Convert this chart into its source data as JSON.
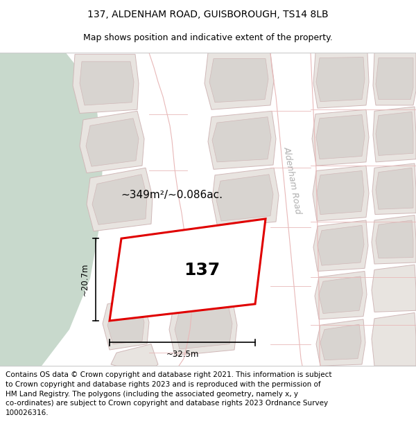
{
  "title": "137, ALDENHAM ROAD, GUISBOROUGH, TS14 8LB",
  "subtitle": "Map shows position and indicative extent of the property.",
  "footer": "Contains OS data © Crown copyright and database right 2021. This information is subject to Crown copyright and database rights 2023 and is reproduced with the permission of HM Land Registry. The polygons (including the associated geometry, namely x, y co-ordinates) are subject to Crown copyright and database rights 2023 Ordnance Survey 100026316.",
  "map_bg": "#f2f0ee",
  "green_color": "#c8d9cc",
  "road_color": "#f2f0ee",
  "building_outer": "#e8e4e0",
  "building_inner": "#d8d4d0",
  "building_stroke": "#d0b8b8",
  "road_stroke": "#e8b8b8",
  "highlight_fill": "#ffffff",
  "highlight_stroke": "#e8000000",
  "label_137": "137",
  "area_label": "~349m²/~0.086ac.",
  "dim_h": "~20.7m",
  "dim_w": "~32.5m",
  "road_label": "Aldenham Road",
  "title_fontsize": 10,
  "subtitle_fontsize": 9,
  "footer_fontsize": 7.5,
  "red": "#e00000",
  "gray_road_label": "#b0b0b0"
}
